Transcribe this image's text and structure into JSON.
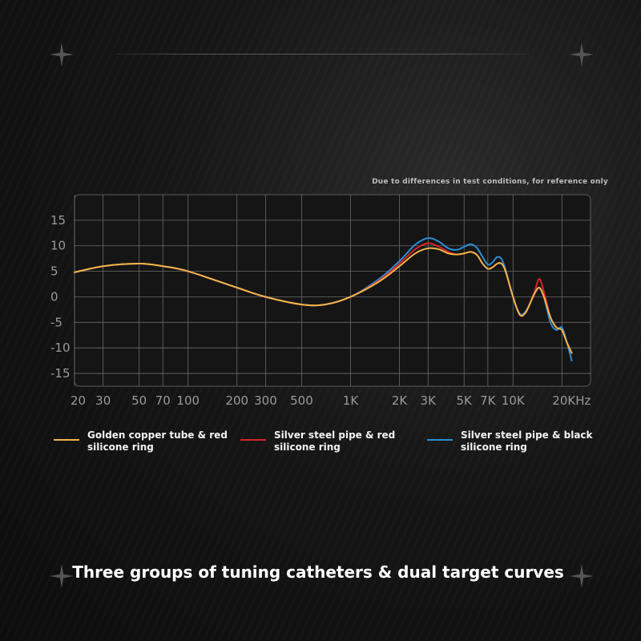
{
  "note": "Due to differences in test conditions, for reference only",
  "headline": "Three groups of tuning catheters & dual target curves",
  "colors": {
    "background": "#141414",
    "grid": "#6b6b6b",
    "golden": "#f0b44a",
    "red": "#d8232a",
    "blue": "#2a8fd6"
  },
  "icons": [
    "sparkle-icon"
  ],
  "chart_data": {
    "type": "line",
    "title": "",
    "xlabel": "",
    "ylabel": "",
    "xscale": "log",
    "xlim": [
      20,
      30000
    ],
    "ylim": [
      -17.5,
      20
    ],
    "grid": true,
    "legend_position": "bottom",
    "y_ticks": [
      15,
      10,
      5,
      0,
      -5,
      -10,
      -15
    ],
    "x_ticks": [
      {
        "v": 20,
        "label": "20"
      },
      {
        "v": 30,
        "label": "30"
      },
      {
        "v": 50,
        "label": "50"
      },
      {
        "v": 70,
        "label": "70"
      },
      {
        "v": 100,
        "label": "100"
      },
      {
        "v": 200,
        "label": "200"
      },
      {
        "v": 300,
        "label": "300"
      },
      {
        "v": 500,
        "label": "500"
      },
      {
        "v": 1000,
        "label": "1K"
      },
      {
        "v": 2000,
        "label": "2K"
      },
      {
        "v": 3000,
        "label": "3K"
      },
      {
        "v": 5000,
        "label": "5K"
      },
      {
        "v": 7000,
        "label": "7K"
      },
      {
        "v": 10000,
        "label": "10K"
      },
      {
        "v": 20000,
        "label": "20KHz"
      }
    ],
    "series": [
      {
        "name": "Golden copper tube & red silicone ring",
        "color": "#f0b44a",
        "points": [
          [
            20,
            4.8
          ],
          [
            30,
            6.0
          ],
          [
            50,
            6.5
          ],
          [
            70,
            6.0
          ],
          [
            100,
            5.0
          ],
          [
            200,
            1.8
          ],
          [
            300,
            0.0
          ],
          [
            500,
            -1.5
          ],
          [
            700,
            -1.5
          ],
          [
            1000,
            0.0
          ],
          [
            1500,
            3.0
          ],
          [
            2000,
            6.0
          ],
          [
            2500,
            8.5
          ],
          [
            3000,
            9.5
          ],
          [
            3500,
            9.3
          ],
          [
            4000,
            8.5
          ],
          [
            4500,
            8.3
          ],
          [
            5000,
            8.5
          ],
          [
            5500,
            8.8
          ],
          [
            6000,
            8.2
          ],
          [
            6500,
            6.5
          ],
          [
            7000,
            5.5
          ],
          [
            7500,
            5.8
          ],
          [
            8000,
            6.5
          ],
          [
            8500,
            6.5
          ],
          [
            9000,
            5.0
          ],
          [
            10000,
            0.0
          ],
          [
            11000,
            -3.5
          ],
          [
            12000,
            -3.0
          ],
          [
            13500,
            0.5
          ],
          [
            14500,
            1.8
          ],
          [
            15500,
            0.0
          ],
          [
            17000,
            -4.0
          ],
          [
            18500,
            -6.0
          ],
          [
            20000,
            -6.5
          ],
          [
            21500,
            -9.0
          ],
          [
            23000,
            -11.0
          ]
        ]
      },
      {
        "name": "Silver steel pipe & red silicone ring",
        "color": "#d8232a",
        "points": [
          [
            20,
            4.8
          ],
          [
            30,
            6.0
          ],
          [
            50,
            6.5
          ],
          [
            70,
            6.0
          ],
          [
            100,
            5.0
          ],
          [
            200,
            1.8
          ],
          [
            300,
            0.0
          ],
          [
            500,
            -1.5
          ],
          [
            700,
            -1.5
          ],
          [
            1000,
            0.0
          ],
          [
            1500,
            3.2
          ],
          [
            2000,
            6.5
          ],
          [
            2500,
            9.3
          ],
          [
            3000,
            10.5
          ],
          [
            3500,
            9.8
          ],
          [
            4000,
            8.8
          ],
          [
            4500,
            8.3
          ],
          [
            5000,
            8.5
          ],
          [
            5500,
            8.8
          ],
          [
            6000,
            8.2
          ],
          [
            6500,
            6.5
          ],
          [
            7000,
            5.5
          ],
          [
            7500,
            5.8
          ],
          [
            8000,
            6.5
          ],
          [
            8500,
            6.5
          ],
          [
            9000,
            5.0
          ],
          [
            10000,
            0.0
          ],
          [
            11000,
            -3.5
          ],
          [
            12000,
            -3.0
          ],
          [
            13500,
            0.8
          ],
          [
            14500,
            3.5
          ],
          [
            15500,
            1.0
          ],
          [
            17000,
            -4.0
          ],
          [
            18500,
            -6.0
          ],
          [
            20000,
            -6.5
          ],
          [
            21500,
            -9.0
          ],
          [
            23000,
            -11.0
          ]
        ]
      },
      {
        "name": "Silver steel pipe & black silicone ring",
        "color": "#2a8fd6",
        "points": [
          [
            20,
            4.8
          ],
          [
            30,
            6.0
          ],
          [
            50,
            6.5
          ],
          [
            70,
            6.0
          ],
          [
            100,
            5.0
          ],
          [
            200,
            1.8
          ],
          [
            300,
            0.0
          ],
          [
            500,
            -1.5
          ],
          [
            700,
            -1.5
          ],
          [
            1000,
            0.0
          ],
          [
            1500,
            3.5
          ],
          [
            2000,
            7.0
          ],
          [
            2500,
            10.2
          ],
          [
            3000,
            11.5
          ],
          [
            3500,
            10.8
          ],
          [
            4000,
            9.5
          ],
          [
            4500,
            9.2
          ],
          [
            5000,
            9.8
          ],
          [
            5500,
            10.3
          ],
          [
            6000,
            9.6
          ],
          [
            6500,
            7.8
          ],
          [
            7000,
            6.3
          ],
          [
            7500,
            6.8
          ],
          [
            8000,
            7.8
          ],
          [
            8500,
            7.4
          ],
          [
            9000,
            5.3
          ],
          [
            10000,
            0.0
          ],
          [
            11000,
            -3.3
          ],
          [
            12000,
            -2.8
          ],
          [
            13500,
            0.5
          ],
          [
            14500,
            1.8
          ],
          [
            15500,
            0.0
          ],
          [
            17000,
            -5.0
          ],
          [
            18500,
            -6.5
          ],
          [
            20000,
            -6.0
          ],
          [
            21500,
            -9.0
          ],
          [
            23000,
            -12.5
          ]
        ]
      }
    ]
  }
}
